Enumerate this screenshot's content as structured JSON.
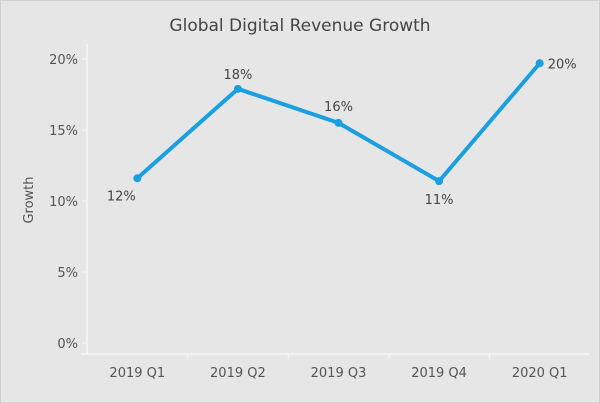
{
  "chart_data": {
    "type": "line",
    "title": "Global Digital Revenue Growth",
    "xlabel": "",
    "ylabel": "Growth",
    "categories": [
      "2019 Q1",
      "2019 Q2",
      "2019 Q3",
      "2019 Q4",
      "2020 Q1"
    ],
    "values": [
      11.6,
      17.9,
      15.5,
      11.4,
      19.7
    ],
    "data_labels": [
      "12%",
      "18%",
      "16%",
      "11%",
      "20%"
    ],
    "yticks": [
      0,
      5,
      10,
      15,
      20
    ],
    "ytick_labels": [
      "0%",
      "5%",
      "10%",
      "15%",
      "20%"
    ],
    "ylim": [
      0,
      20
    ],
    "grid": false,
    "line_color": "#1aa0e0",
    "background": "#e6e6e6"
  }
}
